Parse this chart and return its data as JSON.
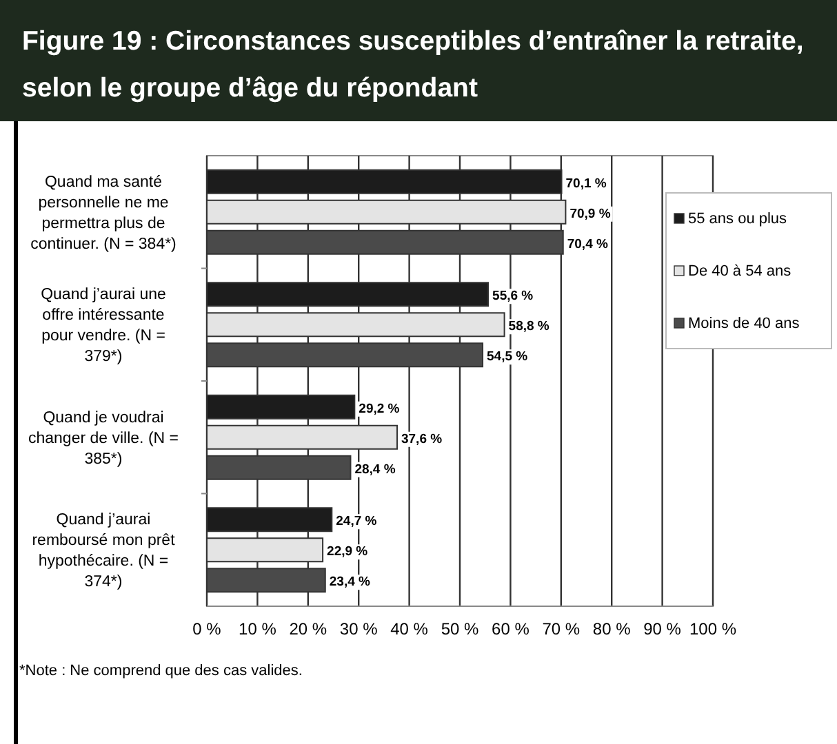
{
  "chart_data": {
    "type": "bar",
    "orientation": "horizontal",
    "title": "Figure 19 : Circonstances susceptibles d’entraîner la retraite, selon le groupe d’âge du répondant",
    "categories": [
      "Quand ma santé personnelle ne me permettra plus de continuer. (N = 384*)",
      "Quand j’aurai une offre intéressante pour vendre. (N = 379*)",
      "Quand je voudrai changer de ville. (N = 385*)",
      "Quand j’aurai remboursé mon prêt hypothécaire. (N = 374*)"
    ],
    "series": [
      {
        "name": "55 ans ou plus",
        "color": "#1c1c1c",
        "values": [
          70.1,
          55.6,
          29.2,
          24.7
        ],
        "value_labels": [
          "70,1 %",
          "55,6 %",
          "29,2 %",
          "24,7 %"
        ]
      },
      {
        "name": "De 40 à 54 ans",
        "color": "#e4e4e4",
        "values": [
          70.9,
          58.8,
          37.6,
          22.9
        ],
        "value_labels": [
          "70,9 %",
          "58,8 %",
          "37,6 %",
          "22,9 %"
        ]
      },
      {
        "name": "Moins de 40 ans",
        "color": "#4a4a4a",
        "values": [
          70.4,
          54.5,
          28.4,
          23.4
        ],
        "value_labels": [
          "70,4 %",
          "54,5 %",
          "28,4 %",
          "23,4 %"
        ]
      }
    ],
    "xlim": [
      0,
      100
    ],
    "xticks": [
      {
        "value": 0,
        "label": "0 %"
      },
      {
        "value": 10,
        "label": "10 %"
      },
      {
        "value": 20,
        "label": "20 %"
      },
      {
        "value": 30,
        "label": "30 %"
      },
      {
        "value": 40,
        "label": "40 %"
      },
      {
        "value": 50,
        "label": "50 %"
      },
      {
        "value": 60,
        "label": "60 %"
      },
      {
        "value": 70,
        "label": "70 %"
      },
      {
        "value": 80,
        "label": "80 %"
      },
      {
        "value": 90,
        "label": "90 %"
      },
      {
        "value": 100,
        "label": "100 %"
      }
    ],
    "grid": "x",
    "legend": "right",
    "annotations": [
      "*Note : Ne comprend que des cas valides."
    ]
  }
}
